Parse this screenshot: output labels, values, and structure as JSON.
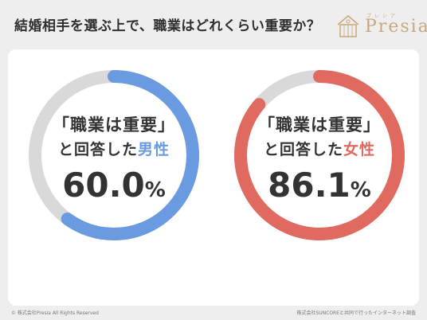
{
  "header": {
    "title": "結婚相手を選ぶ上で、職業はどれくらい重要か？",
    "logo_kana": "プレシア",
    "logo_text": "Presia"
  },
  "chart_data": [
    {
      "type": "pie",
      "style": "donut",
      "label_line1": "「職業は重要」",
      "label_line2_prefix": "と回答した",
      "label_line2_highlight": "男性",
      "value": 60.0,
      "value_text": "60.0",
      "unit": "%",
      "max": 100,
      "color": "#6a9be0",
      "track_color": "#d9d9d9"
    },
    {
      "type": "pie",
      "style": "donut",
      "label_line1": "「職業は重要」",
      "label_line2_prefix": "と回答した",
      "label_line2_highlight": "女性",
      "value": 86.1,
      "value_text": "86.1",
      "unit": "%",
      "max": 100,
      "color": "#e06a5f",
      "track_color": "#d9d9d9"
    }
  ],
  "footer": {
    "copyright": "© 株式会社Presia All Rights Reserved",
    "source": "株式会社SUNCOREと共同で行ったインターネット調査"
  },
  "colors": {
    "background": "#eeeeee",
    "card": "#ffffff",
    "logo_gold": "#c9a77c"
  }
}
